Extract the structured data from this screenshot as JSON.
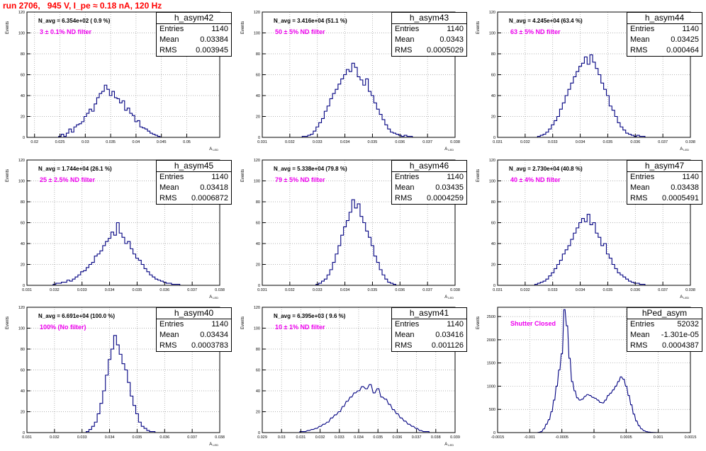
{
  "title": "run 2706,   945 V, I_pe ≈ 0.18 nA, 120 Hz",
  "ylabel": "Events",
  "colors": {
    "title": "#ff0000",
    "hist": "#000080",
    "annotation": "#ee00ee"
  },
  "chart_data": [
    {
      "type": "bar",
      "name": "h_asym42",
      "stats": {
        "entries": "1140",
        "mean": "0.03384",
        "rms": "0.003945"
      },
      "n_avg": "N_avg = 6.354e+02 ( 0.9 %)",
      "filter": "3 ± 0.1% ND filter",
      "xlabel": "A_LED",
      "xlim": [
        0.0185,
        0.0565
      ],
      "ylim": [
        0,
        120
      ],
      "xticks": [
        0.02,
        0.025,
        0.03,
        0.035,
        0.04,
        0.045,
        0.05
      ],
      "xtick_labels": [
        "0.02",
        "0.025",
        "0.03",
        "0.035",
        "0.04",
        "0.045",
        "0.05"
      ],
      "yticks": [
        0,
        20,
        40,
        60,
        80,
        100,
        120
      ],
      "bin_width": 0.0005,
      "x": [
        0.025,
        0.0255,
        0.026,
        0.0265,
        0.027,
        0.0275,
        0.028,
        0.0285,
        0.029,
        0.0295,
        0.03,
        0.0305,
        0.031,
        0.0315,
        0.032,
        0.0325,
        0.033,
        0.0335,
        0.034,
        0.0345,
        0.035,
        0.0355,
        0.036,
        0.0365,
        0.037,
        0.0375,
        0.038,
        0.0385,
        0.039,
        0.0395,
        0.04,
        0.0405,
        0.041,
        0.0415,
        0.042,
        0.0425,
        0.043,
        0.0435,
        0.044,
        0.0445
      ],
      "values": [
        1,
        3,
        1,
        4,
        8,
        5,
        10,
        12,
        13,
        15,
        20,
        23,
        27,
        25,
        32,
        38,
        42,
        44,
        50,
        46,
        40,
        44,
        38,
        37,
        33,
        35,
        26,
        28,
        23,
        21,
        15,
        16,
        10,
        9,
        8,
        6,
        4,
        3,
        2,
        1
      ]
    },
    {
      "type": "bar",
      "name": "h_asym43",
      "stats": {
        "entries": "1140",
        "mean": "0.0343",
        "rms": "0.0005029"
      },
      "n_avg": "N_avg = 3.416e+04 (51.1 %)",
      "filter": "50 ± 5% ND filter",
      "xlabel": "A_LED",
      "xlim": [
        0.031,
        0.038
      ],
      "ylim": [
        0,
        120
      ],
      "xticks": [
        0.031,
        0.032,
        0.033,
        0.034,
        0.035,
        0.036,
        0.037,
        0.038
      ],
      "xtick_labels": [
        "0.031",
        "0.032",
        "0.033",
        "0.034",
        "0.035",
        "0.036",
        "0.037",
        "0.038"
      ],
      "yticks": [
        0,
        20,
        40,
        60,
        80,
        100,
        120
      ],
      "bin_width": 0.0001,
      "x": [
        0.0325,
        0.0326,
        0.0327,
        0.0328,
        0.0329,
        0.033,
        0.0331,
        0.0332,
        0.0333,
        0.0334,
        0.0335,
        0.0336,
        0.0337,
        0.0338,
        0.0339,
        0.034,
        0.0341,
        0.0342,
        0.0343,
        0.0344,
        0.0345,
        0.0346,
        0.0347,
        0.0348,
        0.0349,
        0.035,
        0.0351,
        0.0352,
        0.0353,
        0.0354,
        0.0355,
        0.0356,
        0.0357,
        0.0358,
        0.0359,
        0.036,
        0.0361,
        0.0362,
        0.0363,
        0.0364
      ],
      "values": [
        1,
        1,
        2,
        3,
        6,
        10,
        14,
        18,
        25,
        30,
        37,
        42,
        46,
        51,
        56,
        60,
        65,
        63,
        71,
        67,
        58,
        55,
        50,
        56,
        44,
        40,
        33,
        27,
        22,
        17,
        12,
        8,
        5,
        4,
        3,
        2,
        1,
        2,
        1,
        1
      ]
    },
    {
      "type": "bar",
      "name": "h_asym44",
      "stats": {
        "entries": "1140",
        "mean": "0.03425",
        "rms": "0.000464"
      },
      "n_avg": "N_avg = 4.245e+04 (63.4 %)",
      "filter": "63 ± 5% ND filter",
      "xlabel": "A_LED",
      "xlim": [
        0.031,
        0.038
      ],
      "ylim": [
        0,
        120
      ],
      "xticks": [
        0.031,
        0.032,
        0.033,
        0.034,
        0.035,
        0.036,
        0.037,
        0.038
      ],
      "xtick_labels": [
        "0.031",
        "0.032",
        "0.033",
        "0.034",
        "0.035",
        "0.036",
        "0.037",
        "0.038"
      ],
      "yticks": [
        0,
        20,
        40,
        60,
        80,
        100,
        120
      ],
      "bin_width": 0.0001,
      "x": [
        0.0325,
        0.0326,
        0.0327,
        0.0328,
        0.0329,
        0.033,
        0.0331,
        0.0332,
        0.0333,
        0.0334,
        0.0335,
        0.0336,
        0.0337,
        0.0338,
        0.0339,
        0.034,
        0.0341,
        0.0342,
        0.0343,
        0.0344,
        0.0345,
        0.0346,
        0.0347,
        0.0348,
        0.0349,
        0.035,
        0.0351,
        0.0352,
        0.0353,
        0.0354,
        0.0355,
        0.0356,
        0.0357,
        0.0358,
        0.0359,
        0.036,
        0.0361,
        0.0362,
        0.0363
      ],
      "values": [
        1,
        2,
        3,
        5,
        8,
        12,
        16,
        20,
        27,
        33,
        40,
        46,
        52,
        58,
        63,
        68,
        71,
        77,
        70,
        79,
        72,
        66,
        60,
        52,
        46,
        40,
        30,
        26,
        20,
        14,
        10,
        7,
        4,
        3,
        2,
        1,
        2,
        1,
        1
      ]
    },
    {
      "type": "bar",
      "name": "h_asym45",
      "stats": {
        "entries": "1140",
        "mean": "0.03418",
        "rms": "0.0006872"
      },
      "n_avg": "N_avg = 1.744e+04 (26.1 %)",
      "filter": "25 ± 2.5% ND filter",
      "xlabel": "A_LED",
      "xlim": [
        0.031,
        0.038
      ],
      "ylim": [
        0,
        120
      ],
      "xticks": [
        0.031,
        0.032,
        0.033,
        0.034,
        0.035,
        0.036,
        0.037,
        0.038
      ],
      "xtick_labels": [
        "0.031",
        "0.032",
        "0.033",
        "0.034",
        "0.035",
        "0.036",
        "0.037",
        "0.038"
      ],
      "yticks": [
        0,
        20,
        40,
        60,
        80,
        100,
        120
      ],
      "bin_width": 0.0001,
      "x": [
        0.032,
        0.0321,
        0.0322,
        0.0323,
        0.0324,
        0.0325,
        0.0326,
        0.0327,
        0.0328,
        0.0329,
        0.033,
        0.0331,
        0.0332,
        0.0333,
        0.0334,
        0.0335,
        0.0336,
        0.0337,
        0.0338,
        0.0339,
        0.034,
        0.0341,
        0.0342,
        0.0343,
        0.0344,
        0.0345,
        0.0346,
        0.0347,
        0.0348,
        0.0349,
        0.035,
        0.0351,
        0.0352,
        0.0353,
        0.0354,
        0.0355,
        0.0356,
        0.0357,
        0.0358,
        0.0359,
        0.036,
        0.0361,
        0.0362,
        0.0363,
        0.0364,
        0.0365
      ],
      "values": [
        1,
        2,
        2,
        3,
        3,
        5,
        4,
        6,
        8,
        10,
        13,
        14,
        17,
        20,
        22,
        28,
        30,
        33,
        38,
        42,
        45,
        51,
        48,
        60,
        50,
        46,
        40,
        42,
        35,
        30,
        26,
        24,
        20,
        16,
        13,
        10,
        8,
        6,
        5,
        4,
        3,
        2,
        2,
        1,
        1,
        1
      ]
    },
    {
      "type": "bar",
      "name": "h_asym46",
      "stats": {
        "entries": "1140",
        "mean": "0.03435",
        "rms": "0.0004259"
      },
      "n_avg": "N_avg = 5.338e+04 (79.8 %)",
      "filter": "79 ± 5% ND filter",
      "xlabel": "A_LED",
      "xlim": [
        0.031,
        0.038
      ],
      "ylim": [
        0,
        120
      ],
      "xticks": [
        0.031,
        0.032,
        0.033,
        0.034,
        0.035,
        0.036,
        0.037,
        0.038
      ],
      "xtick_labels": [
        "0.031",
        "0.032",
        "0.033",
        "0.034",
        "0.035",
        "0.036",
        "0.037",
        "0.038"
      ],
      "yticks": [
        0,
        20,
        40,
        60,
        80,
        100,
        120
      ],
      "bin_width": 0.0001,
      "x": [
        0.033,
        0.0331,
        0.0332,
        0.0333,
        0.0334,
        0.0335,
        0.0336,
        0.0337,
        0.0338,
        0.0339,
        0.034,
        0.0341,
        0.0342,
        0.0343,
        0.0344,
        0.0345,
        0.0346,
        0.0347,
        0.0348,
        0.0349,
        0.035,
        0.0351,
        0.0352,
        0.0353,
        0.0354,
        0.0355,
        0.0356,
        0.0357,
        0.0358
      ],
      "values": [
        1,
        2,
        4,
        6,
        10,
        15,
        22,
        30,
        38,
        48,
        56,
        62,
        70,
        82,
        74,
        78,
        66,
        60,
        52,
        46,
        38,
        28,
        22,
        15,
        10,
        6,
        3,
        2,
        1
      ]
    },
    {
      "type": "bar",
      "name": "h_asym47",
      "stats": {
        "entries": "1140",
        "mean": "0.03438",
        "rms": "0.0005491"
      },
      "n_avg": "N_avg = 2.730e+04 (40.8 %)",
      "filter": "40 ± 4% ND filter",
      "xlabel": "A_LED",
      "xlim": [
        0.031,
        0.038
      ],
      "ylim": [
        0,
        120
      ],
      "xticks": [
        0.031,
        0.032,
        0.033,
        0.034,
        0.035,
        0.036,
        0.037,
        0.038
      ],
      "xtick_labels": [
        "0.031",
        "0.032",
        "0.033",
        "0.034",
        "0.035",
        "0.036",
        "0.037",
        "0.038"
      ],
      "yticks": [
        0,
        20,
        40,
        60,
        80,
        100,
        120
      ],
      "bin_width": 0.0001,
      "x": [
        0.0324,
        0.0325,
        0.0326,
        0.0327,
        0.0328,
        0.0329,
        0.033,
        0.0331,
        0.0332,
        0.0333,
        0.0334,
        0.0335,
        0.0336,
        0.0337,
        0.0338,
        0.0339,
        0.034,
        0.0341,
        0.0342,
        0.0343,
        0.0344,
        0.0345,
        0.0346,
        0.0347,
        0.0348,
        0.0349,
        0.035,
        0.0351,
        0.0352,
        0.0353,
        0.0354,
        0.0355,
        0.0356,
        0.0357,
        0.0358,
        0.0359,
        0.036,
        0.0361,
        0.0362,
        0.0363
      ],
      "values": [
        1,
        2,
        3,
        4,
        6,
        9,
        12,
        16,
        20,
        24,
        30,
        34,
        38,
        44,
        50,
        55,
        60,
        64,
        61,
        68,
        58,
        60,
        50,
        46,
        38,
        40,
        30,
        26,
        20,
        16,
        12,
        10,
        8,
        6,
        4,
        3,
        2,
        2,
        1,
        1
      ]
    },
    {
      "type": "bar",
      "name": "h_asym40",
      "stats": {
        "entries": "1140",
        "mean": "0.03434",
        "rms": "0.0003783"
      },
      "n_avg": "N_avg = 6.691e+04 (100.0 %)",
      "filter": "100% (No filter)",
      "xlabel": "A_LED",
      "xlim": [
        0.031,
        0.038
      ],
      "ylim": [
        0,
        120
      ],
      "xticks": [
        0.031,
        0.032,
        0.033,
        0.034,
        0.035,
        0.036,
        0.037,
        0.038
      ],
      "xtick_labels": [
        "0.031",
        "0.032",
        "0.033",
        "0.034",
        "0.035",
        "0.036",
        "0.037",
        "0.038"
      ],
      "yticks": [
        0,
        20,
        40,
        60,
        80,
        100,
        120
      ],
      "bin_width": 0.0001,
      "x": [
        0.0332,
        0.0333,
        0.0334,
        0.0335,
        0.0336,
        0.0337,
        0.0338,
        0.0339,
        0.034,
        0.0341,
        0.0342,
        0.0343,
        0.0344,
        0.0345,
        0.0346,
        0.0347,
        0.0348,
        0.0349,
        0.035,
        0.0351,
        0.0352,
        0.0353,
        0.0354,
        0.0355,
        0.0356
      ],
      "values": [
        1,
        3,
        6,
        10,
        18,
        28,
        40,
        55,
        70,
        80,
        93,
        84,
        75,
        66,
        60,
        48,
        35,
        26,
        18,
        10,
        6,
        4,
        2,
        1,
        1
      ]
    },
    {
      "type": "bar",
      "name": "h_asym41",
      "stats": {
        "entries": "1140",
        "mean": "0.03416",
        "rms": "0.001126"
      },
      "n_avg": "N_avg = 6.395e+03 ( 9.6 %)",
      "filter": "10 ± 1% ND filter",
      "xlabel": "A_LED",
      "xlim": [
        0.029,
        0.039
      ],
      "ylim": [
        0,
        120
      ],
      "xticks": [
        0.029,
        0.03,
        0.031,
        0.032,
        0.033,
        0.034,
        0.035,
        0.036,
        0.037,
        0.038,
        0.039
      ],
      "xtick_labels": [
        "0.029",
        "0.03",
        "0.031",
        "0.032",
        "0.033",
        "0.034",
        "0.035",
        "0.036",
        "0.037",
        "0.038",
        "0.039"
      ],
      "yticks": [
        0,
        20,
        40,
        60,
        80,
        100,
        120
      ],
      "bin_width": 0.0001,
      "x": [
        0.031,
        0.0312,
        0.0314,
        0.0316,
        0.0318,
        0.032,
        0.0322,
        0.0324,
        0.0326,
        0.0328,
        0.033,
        0.0332,
        0.0334,
        0.0336,
        0.0338,
        0.034,
        0.0342,
        0.0344,
        0.0346,
        0.0348,
        0.035,
        0.0352,
        0.0354,
        0.0356,
        0.0358,
        0.036,
        0.0362,
        0.0364,
        0.0366,
        0.0368,
        0.037,
        0.0372,
        0.0374,
        0.0376
      ],
      "values": [
        1,
        1,
        2,
        3,
        4,
        6,
        8,
        10,
        14,
        17,
        20,
        25,
        30,
        34,
        38,
        40,
        44,
        42,
        46,
        38,
        42,
        34,
        32,
        27,
        22,
        18,
        14,
        11,
        8,
        6,
        4,
        2,
        1,
        1
      ]
    },
    {
      "type": "bar",
      "name": "hPed_asym",
      "stats": {
        "entries": "52032",
        "mean": "-1.301e-05",
        "rms": "0.0004387"
      },
      "n_avg": "",
      "filter": "Shutter Closed",
      "xlabel": "",
      "xlim": [
        -0.0015,
        0.0015
      ],
      "ylim": [
        0,
        2700
      ],
      "xticks": [
        -0.0015,
        -0.001,
        -0.0005,
        0,
        0.0005,
        0.001,
        0.0015
      ],
      "xtick_labels": [
        "-0.0015",
        "-0.001",
        "-0.0005",
        "0",
        "0.0005",
        "0.001",
        "0.0015"
      ],
      "yticks": [
        0,
        500,
        1000,
        1500,
        2000,
        2500
      ],
      "bin_width": 2e-05,
      "x": [
        -0.00086,
        -0.00082,
        -0.00078,
        -0.00074,
        -0.0007,
        -0.00066,
        -0.00062,
        -0.00058,
        -0.00054,
        -0.0005,
        -0.00046,
        -0.00042,
        -0.00038,
        -0.00034,
        -0.0003,
        -0.00026,
        -0.00022,
        -0.00018,
        -0.00014,
        -0.0001,
        -6e-05,
        -2e-05,
        2e-05,
        6e-05,
        0.0001,
        0.00014,
        0.00018,
        0.00022,
        0.00026,
        0.0003,
        0.00034,
        0.00038,
        0.00042,
        0.00046,
        0.0005,
        0.00054,
        0.00058,
        0.00062,
        0.00066,
        0.0007,
        0.00074,
        0.00078,
        0.00082,
        0.00086,
        0.0009,
        0.00094,
        0.00098
      ],
      "values": [
        5,
        20,
        80,
        180,
        280,
        450,
        700,
        1000,
        1350,
        1700,
        2650,
        2300,
        1600,
        1100,
        900,
        750,
        700,
        720,
        780,
        820,
        800,
        760,
        740,
        700,
        650,
        640,
        700,
        800,
        850,
        920,
        1000,
        1100,
        1200,
        1150,
        1000,
        800,
        600,
        400,
        250,
        150,
        80,
        40,
        20,
        10,
        5,
        3,
        1
      ]
    }
  ]
}
